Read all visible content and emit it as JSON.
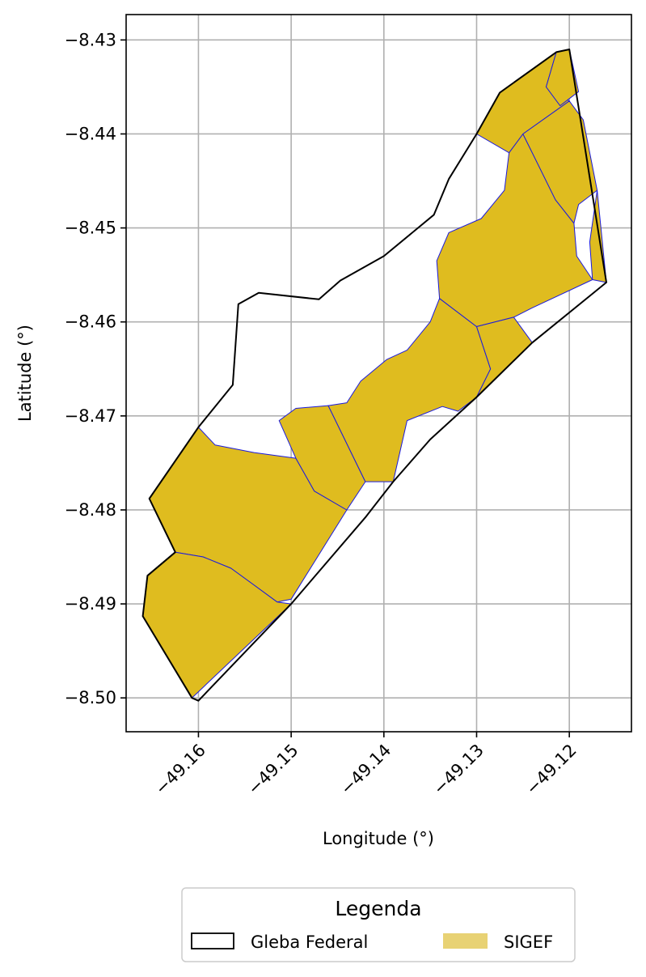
{
  "chart_data": {
    "type": "map",
    "xlabel": "Longitude (°)",
    "ylabel": "Latitude (°)",
    "xlim": [
      -49.1678,
      -49.1133
    ],
    "ylim": [
      -8.5036,
      -8.4273
    ],
    "xticks": [
      -49.16,
      -49.15,
      -49.14,
      -49.13,
      -49.12
    ],
    "xtick_labels": [
      "−49.16",
      "−49.15",
      "−49.14",
      "−49.13",
      "−49.12"
    ],
    "yticks": [
      -8.43,
      -8.44,
      -8.45,
      -8.46,
      -8.47,
      -8.48,
      -8.49,
      -8.5
    ],
    "ytick_labels": [
      "−8.43",
      "−8.44",
      "−8.45",
      "−8.46",
      "−8.47",
      "−8.48",
      "−8.49",
      "−8.50"
    ],
    "grid": true,
    "legend": {
      "title": "Legenda",
      "placement": "bottom-center",
      "entries": [
        {
          "label": "Gleba Federal",
          "style": "outline",
          "color": "#000000"
        },
        {
          "label": "SIGEF",
          "style": "fill",
          "color": "#e8d274"
        }
      ]
    },
    "colors": {
      "gleba_outline": "#000000",
      "sigef_fill": "#dfbc1f",
      "sigef_border": "#1a1adf",
      "grid": "#b0b0b0"
    },
    "layers": [
      {
        "name": "Gleba Federal",
        "style": "outline",
        "polygon": [
          [
            -49.1607,
            -8.5
          ],
          [
            -49.166,
            -8.4913
          ],
          [
            -49.1655,
            -8.487
          ],
          [
            -49.1625,
            -8.4845
          ],
          [
            -49.1653,
            -8.4788
          ],
          [
            -49.16,
            -8.4712
          ],
          [
            -49.1563,
            -8.4667
          ],
          [
            -49.1557,
            -8.4581
          ],
          [
            -49.1535,
            -8.4569
          ],
          [
            -49.147,
            -8.4576
          ],
          [
            -49.1447,
            -8.4556
          ],
          [
            -49.14,
            -8.453
          ],
          [
            -49.1346,
            -8.4486
          ],
          [
            -49.133,
            -8.4448
          ],
          [
            -49.13,
            -8.44
          ],
          [
            -49.1275,
            -8.4356
          ],
          [
            -49.1214,
            -8.4313
          ],
          [
            -49.12,
            -8.431
          ],
          [
            -49.116,
            -8.4558
          ],
          [
            -49.1175,
            -8.457
          ],
          [
            -49.124,
            -8.4622
          ],
          [
            -49.13,
            -8.468
          ],
          [
            -49.135,
            -8.4725
          ],
          [
            -49.139,
            -8.477
          ],
          [
            -49.142,
            -8.4808
          ],
          [
            -49.15,
            -8.49
          ],
          [
            -49.16,
            -8.5003
          ]
        ]
      },
      {
        "name": "SIGEF",
        "style": "fill",
        "polygons": [
          [
            [
              -49.1653,
              -8.4788
            ],
            [
              -49.16,
              -8.4712
            ],
            [
              -49.1582,
              -8.4731
            ],
            [
              -49.154,
              -8.4739
            ],
            [
              -49.1495,
              -8.4745
            ],
            [
              -49.1475,
              -8.478
            ],
            [
              -49.144,
              -8.48
            ],
            [
              -49.15,
              -8.4895
            ],
            [
              -49.1515,
              -8.4898
            ],
            [
              -49.154,
              -8.488
            ],
            [
              -49.1565,
              -8.4862
            ],
            [
              -49.1595,
              -8.485
            ],
            [
              -49.1625,
              -8.4845
            ]
          ],
          [
            [
              -49.1625,
              -8.4845
            ],
            [
              -49.1655,
              -8.487
            ],
            [
              -49.166,
              -8.4913
            ],
            [
              -49.1607,
              -8.5
            ],
            [
              -49.15,
              -8.49
            ],
            [
              -49.1515,
              -8.4898
            ],
            [
              -49.154,
              -8.488
            ],
            [
              -49.1565,
              -8.4862
            ],
            [
              -49.1595,
              -8.485
            ]
          ],
          [
            [
              -49.1513,
              -8.4705
            ],
            [
              -49.1495,
              -8.4692
            ],
            [
              -49.146,
              -8.4689
            ],
            [
              -49.142,
              -8.477
            ],
            [
              -49.144,
              -8.48
            ],
            [
              -49.1475,
              -8.478
            ],
            [
              -49.1495,
              -8.4745
            ]
          ],
          [
            [
              -49.146,
              -8.4689
            ],
            [
              -49.144,
              -8.4686
            ],
            [
              -49.1425,
              -8.4663
            ],
            [
              -49.1397,
              -8.464
            ],
            [
              -49.1375,
              -8.463
            ],
            [
              -49.135,
              -8.46
            ],
            [
              -49.134,
              -8.4575
            ],
            [
              -49.13,
              -8.4605
            ],
            [
              -49.1285,
              -8.465
            ],
            [
              -49.13,
              -8.468
            ],
            [
              -49.132,
              -8.4695
            ],
            [
              -49.1337,
              -8.469
            ],
            [
              -49.1375,
              -8.4705
            ],
            [
              -49.139,
              -8.477
            ],
            [
              -49.142,
              -8.477
            ]
          ],
          [
            [
              -49.134,
              -8.4575
            ],
            [
              -49.1343,
              -8.4535
            ],
            [
              -49.133,
              -8.4505
            ],
            [
              -49.1295,
              -8.449
            ],
            [
              -49.127,
              -8.446
            ],
            [
              -49.1265,
              -8.442
            ],
            [
              -49.125,
              -8.44
            ],
            [
              -49.124,
              -8.442
            ],
            [
              -49.1215,
              -8.447
            ],
            [
              -49.1195,
              -8.4495
            ],
            [
              -49.1192,
              -8.453
            ],
            [
              -49.1175,
              -8.4555
            ],
            [
              -49.124,
              -8.4585
            ],
            [
              -49.126,
              -8.4595
            ],
            [
              -49.13,
              -8.4605
            ]
          ],
          [
            [
              -49.13,
              -8.4605
            ],
            [
              -49.1285,
              -8.465
            ],
            [
              -49.13,
              -8.468
            ],
            [
              -49.124,
              -8.4622
            ],
            [
              -49.126,
              -8.4595
            ]
          ],
          [
            [
              -49.13,
              -8.44
            ],
            [
              -49.1275,
              -8.4356
            ],
            [
              -49.1214,
              -8.4313
            ],
            [
              -49.1225,
              -8.435
            ],
            [
              -49.12,
              -8.4365
            ],
            [
              -49.125,
              -8.44
            ],
            [
              -49.1265,
              -8.442
            ]
          ],
          [
            [
              -49.125,
              -8.44
            ],
            [
              -49.12,
              -8.4365
            ],
            [
              -49.1185,
              -8.4385
            ],
            [
              -49.117,
              -8.446
            ],
            [
              -49.119,
              -8.4475
            ],
            [
              -49.1195,
              -8.4495
            ],
            [
              -49.1215,
              -8.447
            ],
            [
              -49.124,
              -8.442
            ]
          ],
          [
            [
              -49.12,
              -8.431
            ],
            [
              -49.119,
              -8.4355
            ],
            [
              -49.121,
              -8.437
            ],
            [
              -49.1225,
              -8.435
            ],
            [
              -49.1214,
              -8.4313
            ]
          ],
          [
            [
              -49.117,
              -8.446
            ],
            [
              -49.116,
              -8.4558
            ],
            [
              -49.1175,
              -8.4555
            ],
            [
              -49.1178,
              -8.4515
            ]
          ]
        ]
      }
    ]
  }
}
